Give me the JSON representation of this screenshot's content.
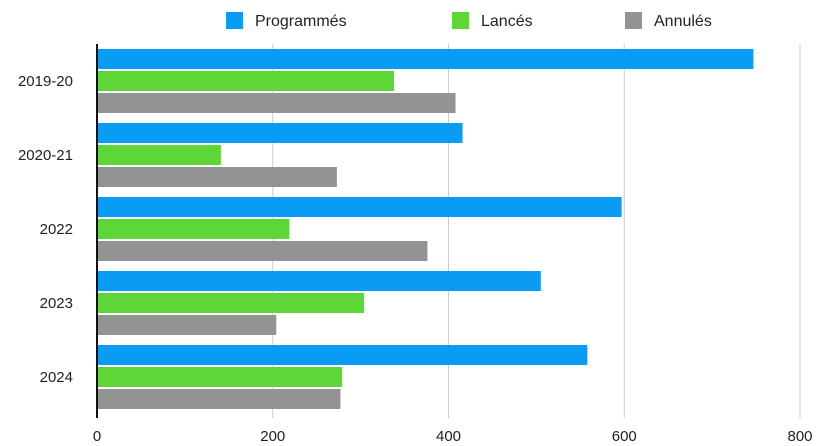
{
  "chart_data": {
    "type": "bar",
    "orientation": "horizontal",
    "categories": [
      "2019-20",
      "2020-21",
      "2022",
      "2023",
      "2024"
    ],
    "series": [
      {
        "name": "Programmés",
        "color": "#0a9cf5",
        "values": [
          747,
          416,
          597,
          505,
          558
        ]
      },
      {
        "name": "Lancés",
        "color": "#5fd637",
        "values": [
          338,
          141,
          219,
          304,
          279
        ]
      },
      {
        "name": "Annulés",
        "color": "#939393",
        "values": [
          408,
          273,
          376,
          204,
          277
        ]
      }
    ],
    "xlim": [
      0,
      800
    ],
    "xticks": [
      0,
      200,
      400,
      600,
      800
    ],
    "grid": "vertical",
    "legend_position": "top"
  }
}
